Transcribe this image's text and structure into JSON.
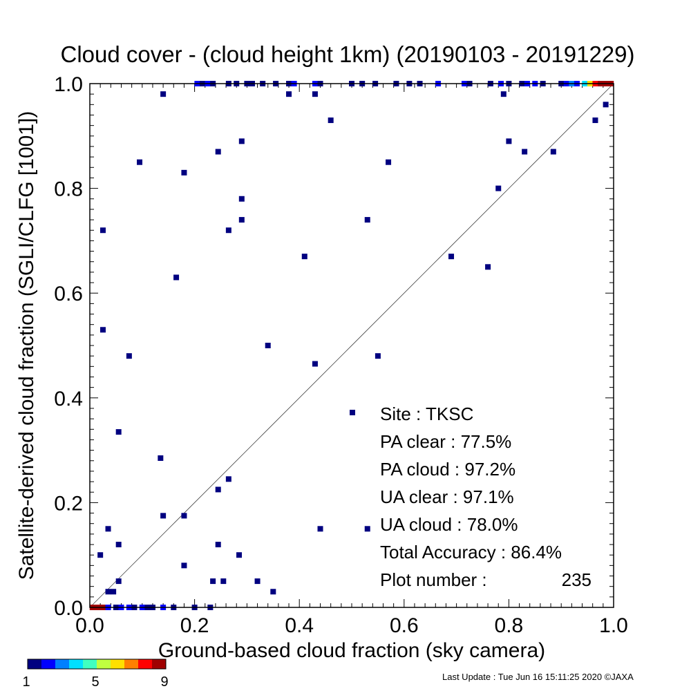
{
  "chart_data": {
    "type": "scatter",
    "title": "Cloud cover - (cloud height 1km)  (20190103 - 20191229)",
    "xlabel": "Ground-based cloud fraction (sky camera)",
    "ylabel": "Satellite-derived cloud fraction (SGLI/CLFG [1001])",
    "xlim": [
      0.0,
      1.0
    ],
    "ylim": [
      0.0,
      1.0
    ],
    "xticks": [
      "0.0",
      "0.2",
      "0.4",
      "0.6",
      "0.8",
      "1.0"
    ],
    "yticks": [
      "0.0",
      "0.2",
      "0.4",
      "0.6",
      "0.8",
      "1.0"
    ],
    "diagonal": true,
    "grid": false,
    "legend_position": "bottom-right",
    "colorbar": {
      "min_label": "1",
      "mid_label": "5",
      "max_label": "9",
      "colors": [
        "#000080",
        "#0000ff",
        "#0080ff",
        "#00e0ff",
        "#40ffc0",
        "#c0ff40",
        "#ffe000",
        "#ff8000",
        "#ff0000",
        "#a00000"
      ]
    },
    "points": [
      {
        "x": 0.02,
        "y": 0.1
      },
      {
        "x": 0.025,
        "y": 0.72
      },
      {
        "x": 0.025,
        "y": 0.53
      },
      {
        "x": 0.035,
        "y": 0.15
      },
      {
        "x": 0.035,
        "y": 0.03
      },
      {
        "x": 0.045,
        "y": 0.03
      },
      {
        "x": 0.055,
        "y": 0.12
      },
      {
        "x": 0.055,
        "y": 0.05
      },
      {
        "x": 0.055,
        "y": 0.335
      },
      {
        "x": 0.075,
        "y": 0.48
      },
      {
        "x": 0.095,
        "y": 0.85
      },
      {
        "x": 0.135,
        "y": 0.285
      },
      {
        "x": 0.14,
        "y": 0.175
      },
      {
        "x": 0.14,
        "y": 0.98
      },
      {
        "x": 0.165,
        "y": 0.63
      },
      {
        "x": 0.18,
        "y": 0.175
      },
      {
        "x": 0.18,
        "y": 0.08
      },
      {
        "x": 0.18,
        "y": 0.83
      },
      {
        "x": 0.235,
        "y": 0.05
      },
      {
        "x": 0.245,
        "y": 0.12
      },
      {
        "x": 0.245,
        "y": 0.225
      },
      {
        "x": 0.245,
        "y": 0.87
      },
      {
        "x": 0.255,
        "y": 0.05
      },
      {
        "x": 0.265,
        "y": 0.245
      },
      {
        "x": 0.265,
        "y": 0.72
      },
      {
        "x": 0.285,
        "y": 0.1
      },
      {
        "x": 0.29,
        "y": 0.89
      },
      {
        "x": 0.29,
        "y": 0.78
      },
      {
        "x": 0.29,
        "y": 0.74
      },
      {
        "x": 0.32,
        "y": 0.05
      },
      {
        "x": 0.34,
        "y": 0.5
      },
      {
        "x": 0.35,
        "y": 0.03
      },
      {
        "x": 0.38,
        "y": 0.98
      },
      {
        "x": 0.41,
        "y": 0.67
      },
      {
        "x": 0.43,
        "y": 0.98
      },
      {
        "x": 0.43,
        "y": 0.465
      },
      {
        "x": 0.44,
        "y": 0.15
      },
      {
        "x": 0.46,
        "y": 0.93
      },
      {
        "x": 0.53,
        "y": 0.74
      },
      {
        "x": 0.53,
        "y": 0.15
      },
      {
        "x": 0.55,
        "y": 0.48
      },
      {
        "x": 0.57,
        "y": 0.85
      },
      {
        "x": 0.69,
        "y": 0.67
      },
      {
        "x": 0.76,
        "y": 0.65
      },
      {
        "x": 0.78,
        "y": 0.8
      },
      {
        "x": 0.79,
        "y": 0.98
      },
      {
        "x": 0.8,
        "y": 0.89
      },
      {
        "x": 0.83,
        "y": 0.87
      },
      {
        "x": 0.885,
        "y": 0.87
      },
      {
        "x": 0.965,
        "y": 0.93
      },
      {
        "x": 0.985,
        "y": 0.96
      }
    ],
    "top_row_points": [
      {
        "x": 0.205,
        "c": 2
      },
      {
        "x": 0.215,
        "c": 1
      },
      {
        "x": 0.225,
        "c": 2
      },
      {
        "x": 0.235,
        "c": 1
      },
      {
        "x": 0.265,
        "c": 1
      },
      {
        "x": 0.28,
        "c": 1
      },
      {
        "x": 0.3,
        "c": 1
      },
      {
        "x": 0.31,
        "c": 1
      },
      {
        "x": 0.33,
        "c": 1
      },
      {
        "x": 0.355,
        "c": 1
      },
      {
        "x": 0.38,
        "c": 1
      },
      {
        "x": 0.39,
        "c": 2
      },
      {
        "x": 0.43,
        "c": 2
      },
      {
        "x": 0.44,
        "c": 1
      },
      {
        "x": 0.5,
        "c": 1
      },
      {
        "x": 0.52,
        "c": 1
      },
      {
        "x": 0.545,
        "c": 1
      },
      {
        "x": 0.585,
        "c": 1
      },
      {
        "x": 0.61,
        "c": 1
      },
      {
        "x": 0.63,
        "c": 1
      },
      {
        "x": 0.665,
        "c": 2
      },
      {
        "x": 0.715,
        "c": 2
      },
      {
        "x": 0.725,
        "c": 1
      },
      {
        "x": 0.765,
        "c": 1
      },
      {
        "x": 0.785,
        "c": 2
      },
      {
        "x": 0.8,
        "c": 1
      },
      {
        "x": 0.825,
        "c": 1
      },
      {
        "x": 0.835,
        "c": 2
      },
      {
        "x": 0.85,
        "c": 2
      },
      {
        "x": 0.865,
        "c": 1
      },
      {
        "x": 0.9,
        "c": 1
      },
      {
        "x": 0.91,
        "c": 2
      },
      {
        "x": 0.92,
        "c": 3
      },
      {
        "x": 0.93,
        "c": 2
      },
      {
        "x": 0.945,
        "c": 4
      },
      {
        "x": 0.955,
        "c": 6
      },
      {
        "x": 0.965,
        "c": 8
      },
      {
        "x": 0.975,
        "c": 9
      },
      {
        "x": 0.985,
        "c": 9
      },
      {
        "x": 0.995,
        "c": 9
      }
    ],
    "bottom_row_points": [
      {
        "x": 0.005,
        "c": 9
      },
      {
        "x": 0.015,
        "c": 9
      },
      {
        "x": 0.025,
        "c": 9
      },
      {
        "x": 0.035,
        "c": 2
      },
      {
        "x": 0.05,
        "c": 1
      },
      {
        "x": 0.06,
        "c": 2
      },
      {
        "x": 0.075,
        "c": 2
      },
      {
        "x": 0.085,
        "c": 1
      },
      {
        "x": 0.1,
        "c": 2
      },
      {
        "x": 0.11,
        "c": 1
      },
      {
        "x": 0.12,
        "c": 1
      },
      {
        "x": 0.14,
        "c": 2
      },
      {
        "x": 0.16,
        "c": 1
      },
      {
        "x": 0.2,
        "c": 1
      },
      {
        "x": 0.23,
        "c": 1
      }
    ]
  },
  "legend": {
    "site": "Site : TKSC",
    "pa_clear": "PA clear :  77.5%",
    "pa_cloud": "PA cloud :  97.2%",
    "ua_clear": "UA clear :  97.1%",
    "ua_cloud": "UA cloud :  78.0%",
    "total_accuracy": "Total Accuracy :  86.4%",
    "plot_number_label": "Plot number :",
    "plot_number_value": "235"
  },
  "footer": {
    "last_update": "Last Update : Tue Jun 16 15:11:25 2020  ©JAXA"
  }
}
